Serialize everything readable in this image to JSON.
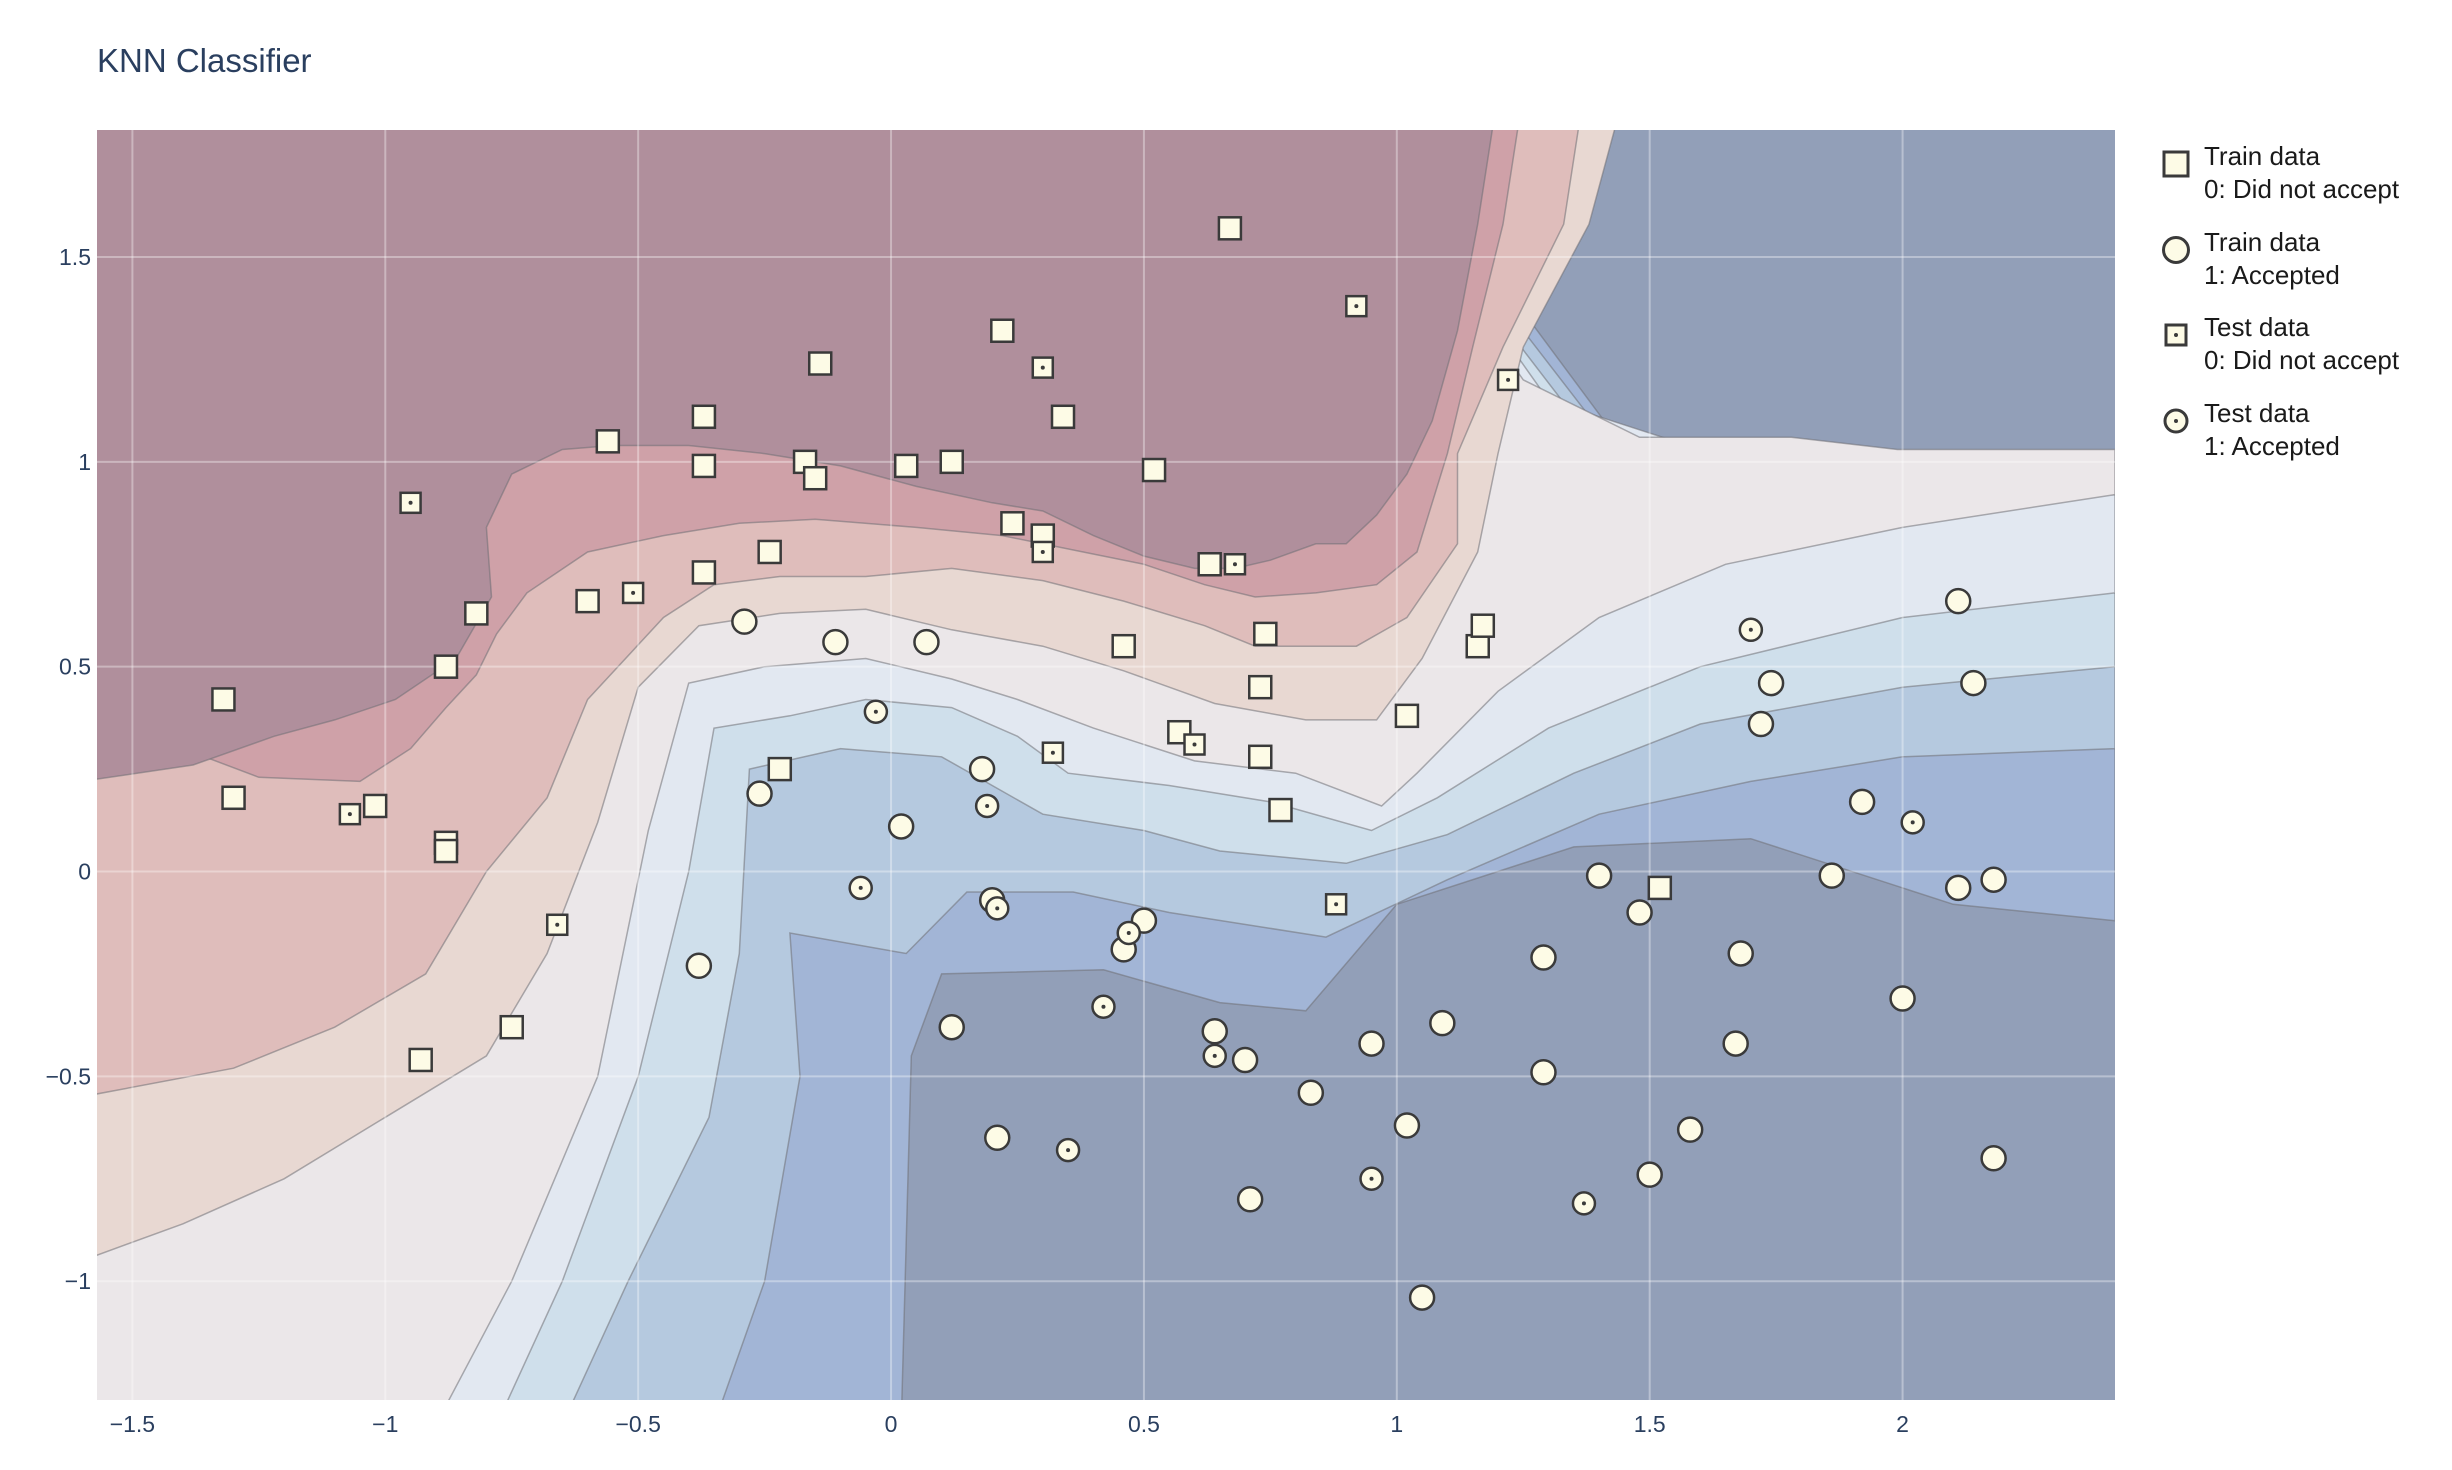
{
  "chart_data": {
    "type": "scatter",
    "title": "KNN Classifier",
    "xlabel": "",
    "ylabel": "",
    "xlim": [
      -1.57,
      2.42
    ],
    "ylim": [
      -1.29,
      1.81
    ],
    "x_ticks": [
      -1.5,
      -1,
      -0.5,
      0,
      0.5,
      1,
      1.5,
      2
    ],
    "x_tick_labels": [
      "−1.5",
      "−1",
      "−0.5",
      "0",
      "0.5",
      "1",
      "1.5",
      "2"
    ],
    "y_ticks": [
      -1,
      -0.5,
      0,
      0.5,
      1,
      1.5
    ],
    "y_tick_labels": [
      "−1",
      "−0.5",
      "0",
      "0.5",
      "1",
      "1.5"
    ],
    "grid": true,
    "legend_position": "right",
    "background": "decision-surface contour (red = class 0, blue = class 1)",
    "colors": {
      "class0_strong": "#b08f9c",
      "class0_mid": "#cfa1a8",
      "class0_light": "#dfbdbb",
      "class0_pale": "#e8d8d2",
      "neutral": "#ebe7e9",
      "class1_pale": "#e2e8f1",
      "class1_light": "#cfdfeb",
      "class1_mid": "#b5c9df",
      "class1_deep": "#a2b5d6",
      "class1_strong": "#929fb8",
      "marker_fill": "#fdfbe6",
      "marker_edge": "#3a3a3a"
    },
    "legend": [
      {
        "line1": "Train data",
        "line2": "0: Did not accept",
        "symbol": "square"
      },
      {
        "line1": "Train data",
        "line2": "1: Accepted",
        "symbol": "circle"
      },
      {
        "line1": "Test data",
        "line2": "0: Did not accept",
        "symbol": "square-dot"
      },
      {
        "line1": "Test data",
        "line2": "1: Accepted",
        "symbol": "circle-dot"
      }
    ],
    "series": [
      {
        "name": "Train data 0: Did not accept",
        "symbol": "square",
        "points": [
          [
            -1.32,
            0.42
          ],
          [
            -1.3,
            0.18
          ],
          [
            -1.02,
            0.16
          ],
          [
            -0.88,
            0.07
          ],
          [
            -0.88,
            0.05
          ],
          [
            -0.88,
            0.5
          ],
          [
            -0.82,
            0.63
          ],
          [
            -0.93,
            -0.46
          ],
          [
            -0.75,
            -0.38
          ],
          [
            -0.6,
            0.66
          ],
          [
            -0.56,
            1.05
          ],
          [
            -0.37,
            1.11
          ],
          [
            -0.37,
            0.99
          ],
          [
            -0.37,
            0.73
          ],
          [
            -0.24,
            0.78
          ],
          [
            -0.22,
            0.25
          ],
          [
            -0.17,
            1.0
          ],
          [
            -0.15,
            0.96
          ],
          [
            -0.14,
            1.24
          ],
          [
            0.03,
            0.99
          ],
          [
            0.12,
            1.0
          ],
          [
            0.22,
            1.32
          ],
          [
            0.24,
            0.85
          ],
          [
            0.3,
            0.82
          ],
          [
            0.34,
            1.11
          ],
          [
            0.52,
            0.98
          ],
          [
            0.46,
            0.55
          ],
          [
            0.57,
            0.34
          ],
          [
            0.63,
            0.75
          ],
          [
            0.67,
            1.57
          ],
          [
            0.73,
            0.45
          ],
          [
            0.74,
            0.58
          ],
          [
            0.73,
            0.28
          ],
          [
            0.77,
            0.15
          ],
          [
            1.02,
            0.38
          ],
          [
            1.16,
            0.55
          ],
          [
            1.17,
            0.6
          ],
          [
            1.52,
            -0.04
          ]
        ]
      },
      {
        "name": "Train data 1: Accepted",
        "symbol": "circle",
        "points": [
          [
            -0.29,
            0.61
          ],
          [
            -0.11,
            0.56
          ],
          [
            0.07,
            0.56
          ],
          [
            -0.26,
            0.19
          ],
          [
            0.02,
            0.11
          ],
          [
            0.18,
            0.25
          ],
          [
            0.2,
            -0.07
          ],
          [
            -0.38,
            -0.23
          ],
          [
            0.12,
            -0.38
          ],
          [
            0.46,
            -0.19
          ],
          [
            0.5,
            -0.12
          ],
          [
            0.64,
            -0.39
          ],
          [
            0.7,
            -0.46
          ],
          [
            0.83,
            -0.54
          ],
          [
            0.95,
            -0.42
          ],
          [
            1.09,
            -0.37
          ],
          [
            0.21,
            -0.65
          ],
          [
            1.02,
            -0.62
          ],
          [
            0.71,
            -0.8
          ],
          [
            1.05,
            -1.04
          ],
          [
            1.29,
            -0.21
          ],
          [
            1.29,
            -0.49
          ],
          [
            1.4,
            -0.01
          ],
          [
            1.48,
            -0.1
          ],
          [
            1.5,
            -0.74
          ],
          [
            1.58,
            -0.63
          ],
          [
            1.67,
            -0.42
          ],
          [
            1.68,
            -0.2
          ],
          [
            1.72,
            0.36
          ],
          [
            1.74,
            0.46
          ],
          [
            1.86,
            -0.01
          ],
          [
            1.92,
            0.17
          ],
          [
            2.0,
            -0.31
          ],
          [
            2.11,
            0.66
          ],
          [
            2.11,
            -0.04
          ],
          [
            2.14,
            0.46
          ],
          [
            2.18,
            -0.02
          ],
          [
            2.18,
            -0.7
          ]
        ]
      },
      {
        "name": "Test data 0: Did not accept",
        "symbol": "square-dot",
        "points": [
          [
            -0.95,
            0.9
          ],
          [
            -1.07,
            0.14
          ],
          [
            -0.51,
            0.68
          ],
          [
            -0.66,
            -0.13
          ],
          [
            0.3,
            1.23
          ],
          [
            0.3,
            0.78
          ],
          [
            0.32,
            0.29
          ],
          [
            0.6,
            0.31
          ],
          [
            0.68,
            0.75
          ],
          [
            0.92,
            1.38
          ],
          [
            0.88,
            -0.08
          ],
          [
            1.22,
            1.2
          ]
        ]
      },
      {
        "name": "Test data 1: Accepted",
        "symbol": "circle-dot",
        "points": [
          [
            -0.03,
            0.39
          ],
          [
            -0.06,
            -0.04
          ],
          [
            0.19,
            0.16
          ],
          [
            0.21,
            -0.09
          ],
          [
            0.35,
            -0.68
          ],
          [
            0.42,
            -0.33
          ],
          [
            0.47,
            -0.15
          ],
          [
            0.64,
            -0.45
          ],
          [
            0.95,
            -0.75
          ],
          [
            1.37,
            -0.81
          ],
          [
            1.7,
            0.59
          ],
          [
            2.02,
            0.12
          ]
        ]
      }
    ]
  }
}
